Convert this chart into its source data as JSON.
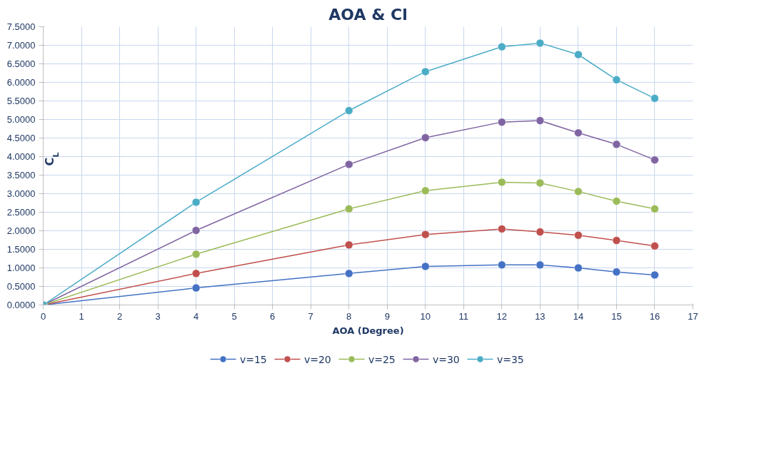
{
  "chart_data": {
    "type": "line",
    "title": "AOA & Cl",
    "xlabel": "AOA (Degree)",
    "ylabel": "C$_{L}$",
    "x": [
      0,
      4,
      8,
      10,
      12,
      13,
      14,
      15,
      16
    ],
    "series": [
      {
        "name": "v=15",
        "color": "#4472c4",
        "values": [
          0,
          0.46,
          0.85,
          1.04,
          1.08,
          1.08,
          1.0,
          0.89,
          0.81
        ]
      },
      {
        "name": "v=20",
        "color": "#c0504d",
        "values": [
          0,
          0.85,
          1.62,
          1.9,
          2.05,
          1.97,
          1.88,
          1.74,
          1.59
        ]
      },
      {
        "name": "v=25",
        "color": "#9bbb59",
        "values": [
          0,
          1.37,
          2.59,
          3.08,
          3.31,
          3.29,
          3.06,
          2.8,
          2.59
        ]
      },
      {
        "name": "v=30",
        "color": "#8064a2",
        "values": [
          0,
          2.01,
          3.79,
          4.51,
          4.93,
          4.97,
          4.64,
          4.33,
          3.91
        ]
      },
      {
        "name": "v=35",
        "color": "#4bacc6",
        "values": [
          0,
          2.77,
          5.24,
          6.29,
          6.96,
          7.06,
          6.75,
          6.07,
          5.57
        ]
      }
    ],
    "xlim": [
      0,
      17
    ],
    "xticks": [
      0,
      1,
      2,
      3,
      4,
      5,
      6,
      7,
      8,
      9,
      10,
      11,
      12,
      13,
      14,
      15,
      16,
      17
    ],
    "ylim": [
      0,
      7.5
    ],
    "yticks": [
      {
        "value": 0,
        "label": "0.0000"
      },
      {
        "value": 0.5,
        "label": "0.5000"
      },
      {
        "value": 1,
        "label": "1.0000"
      },
      {
        "value": 1.5,
        "label": "1.5000"
      },
      {
        "value": 2,
        "label": "2.0000"
      },
      {
        "value": 2.5,
        "label": "2.5000"
      },
      {
        "value": 3,
        "label": "3.0000"
      },
      {
        "value": 3.5,
        "label": "3.5000"
      },
      {
        "value": 4,
        "label": "4.0000"
      },
      {
        "value": 4.5,
        "label": "4.5000"
      },
      {
        "value": 5,
        "label": "5.0000"
      },
      {
        "value": 5.5,
        "label": "5.5000"
      },
      {
        "value": 6,
        "label": "6.0000"
      },
      {
        "value": 6.5,
        "label": "6.5000"
      },
      {
        "value": 7,
        "label": "7.0000"
      },
      {
        "value": 7.5,
        "label": "7.5000"
      }
    ],
    "grid": true,
    "legend": "bottom",
    "marker": "circle",
    "line_style": "solid"
  }
}
